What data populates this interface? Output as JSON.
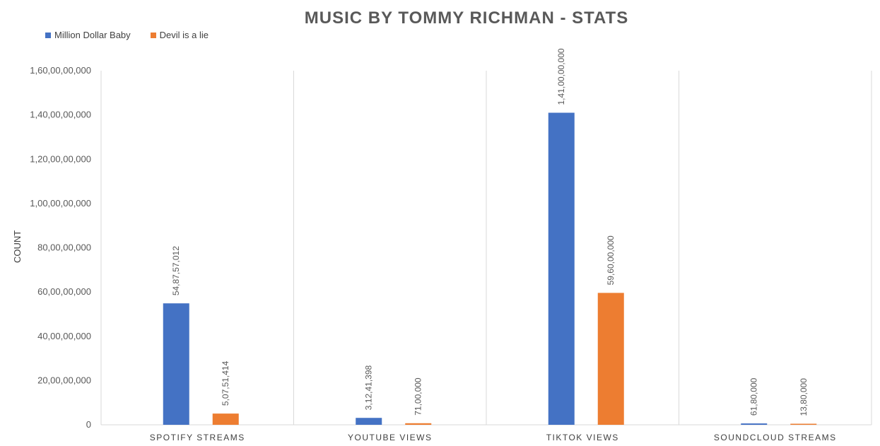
{
  "chart_data": {
    "type": "bar",
    "title": "MUSIC BY TOMMY RICHMAN - STATS",
    "ylabel": "COUNT",
    "xlabel": "",
    "categories": [
      "SPOTIFY STREAMS",
      "YOUTUBE VIEWS",
      "TIKTOK VIEWS",
      "SOUNDCLOUD STREAMS"
    ],
    "series": [
      {
        "name": "Million Dollar Baby",
        "color": "#4472C4",
        "values": [
          548757012,
          31241398,
          1410000000,
          6180000
        ],
        "labels": [
          "54,87,57,012",
          "3,12,41,398",
          "1,41,00,00,000",
          "61,80,000"
        ]
      },
      {
        "name": "Devil is a lie",
        "color": "#ED7D31",
        "values": [
          50751414,
          7100000,
          596000000,
          1380000
        ],
        "labels": [
          "5,07,51,414",
          "71,00,000",
          "59,60,00,000",
          "13,80,000"
        ]
      }
    ],
    "ylim": [
      0,
      1600000000
    ],
    "yticks": [
      0,
      200000000,
      400000000,
      600000000,
      800000000,
      1000000000,
      1200000000,
      1400000000,
      1600000000
    ],
    "ytick_labels": [
      "0",
      "20,00,00,000",
      "40,00,00,000",
      "60,00,00,000",
      "80,00,00,000",
      "1,00,00,00,000",
      "1,20,00,00,000",
      "1,40,00,00,000",
      "1,60,00,00,000"
    ],
    "grid": "vertical separators between categories",
    "legend_position": "top-left"
  }
}
